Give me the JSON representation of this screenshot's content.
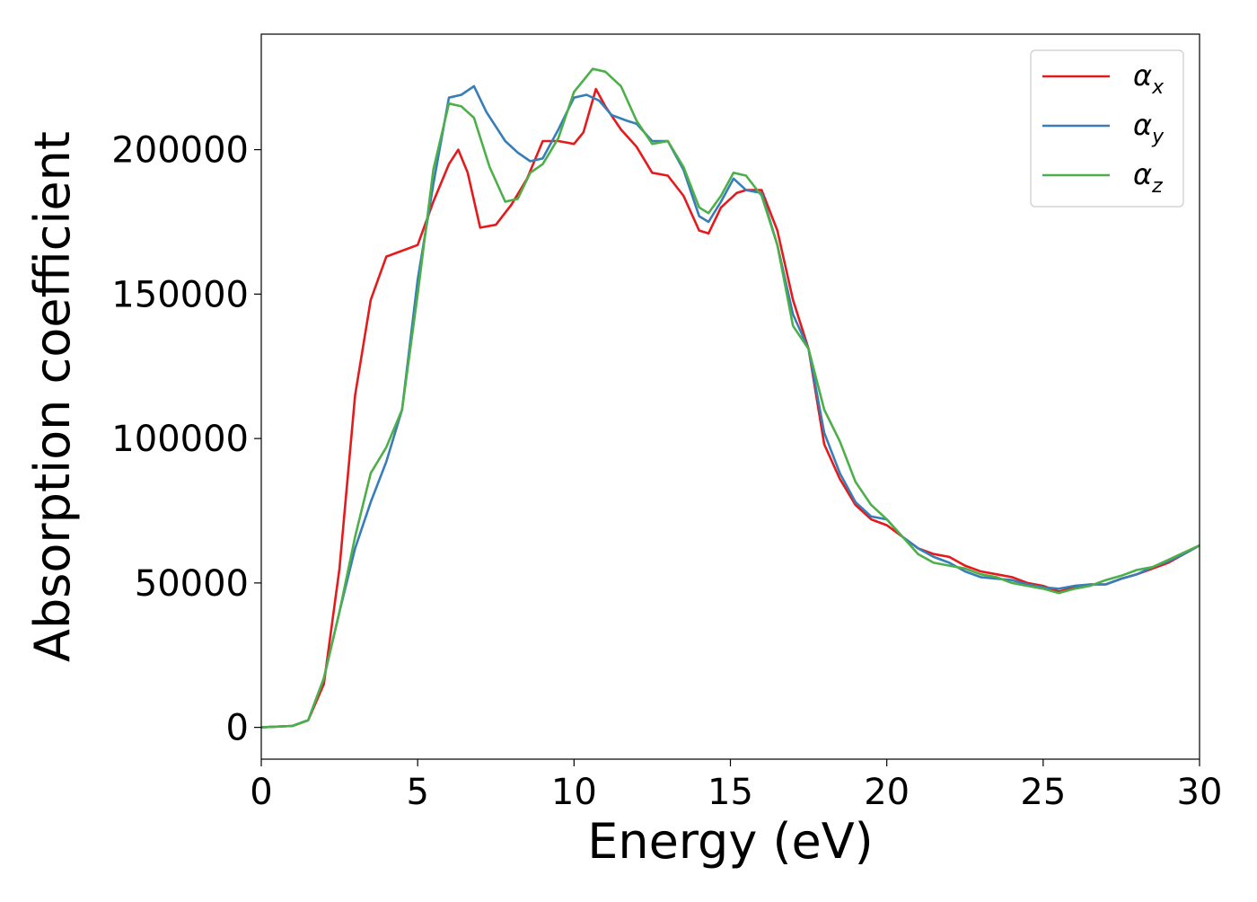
{
  "chart_data": {
    "type": "line",
    "title": "",
    "xlabel": "Energy (eV)",
    "ylabel": "Absorption coefficient",
    "xlim": [
      0,
      30
    ],
    "ylim": [
      -11000,
      240000
    ],
    "xticks": [
      0,
      5,
      10,
      15,
      20,
      25,
      30
    ],
    "xtick_labels": [
      "0",
      "5",
      "10",
      "15",
      "20",
      "25",
      "30"
    ],
    "yticks": [
      0,
      50000,
      100000,
      150000,
      200000
    ],
    "ytick_labels": [
      "0",
      "50000",
      "100000",
      "150000",
      "200000"
    ],
    "grid": false,
    "legend_position": "top-right",
    "series": [
      {
        "name": "αx",
        "legend_main": "α",
        "legend_sub": "x",
        "color": "#e41a1c",
        "points": [
          [
            0,
            0
          ],
          [
            1,
            500
          ],
          [
            1.5,
            2500
          ],
          [
            2,
            15000
          ],
          [
            2.5,
            55000
          ],
          [
            3,
            115000
          ],
          [
            3.5,
            148000
          ],
          [
            4,
            163000
          ],
          [
            4.5,
            165000
          ],
          [
            5,
            167000
          ],
          [
            5.5,
            182000
          ],
          [
            6,
            195000
          ],
          [
            6.3,
            200000
          ],
          [
            6.6,
            192000
          ],
          [
            7,
            173000
          ],
          [
            7.5,
            174000
          ],
          [
            8,
            181000
          ],
          [
            8.5,
            190000
          ],
          [
            9,
            203000
          ],
          [
            9.5,
            203000
          ],
          [
            10,
            202000
          ],
          [
            10.3,
            206000
          ],
          [
            10.7,
            221000
          ],
          [
            11,
            215000
          ],
          [
            11.5,
            207000
          ],
          [
            12,
            201000
          ],
          [
            12.5,
            192000
          ],
          [
            13,
            191000
          ],
          [
            13.5,
            184000
          ],
          [
            14,
            172000
          ],
          [
            14.3,
            171000
          ],
          [
            14.7,
            180000
          ],
          [
            15.2,
            185000
          ],
          [
            15.5,
            186000
          ],
          [
            16,
            186000
          ],
          [
            16.5,
            172000
          ],
          [
            17,
            148000
          ],
          [
            17.5,
            131000
          ],
          [
            18,
            98000
          ],
          [
            18.5,
            86000
          ],
          [
            19,
            77000
          ],
          [
            19.5,
            72000
          ],
          [
            20,
            70000
          ],
          [
            20.5,
            66000
          ],
          [
            21,
            62000
          ],
          [
            21.5,
            60000
          ],
          [
            22,
            59000
          ],
          [
            22.5,
            56000
          ],
          [
            23,
            54000
          ],
          [
            23.5,
            53000
          ],
          [
            24,
            52000
          ],
          [
            24.5,
            50000
          ],
          [
            25,
            49000
          ],
          [
            25.5,
            47000
          ],
          [
            26,
            48500
          ],
          [
            26.5,
            49500
          ],
          [
            27,
            49500
          ],
          [
            27.5,
            51500
          ],
          [
            28,
            53000
          ],
          [
            28.5,
            55000
          ],
          [
            29,
            57000
          ],
          [
            29.5,
            60000
          ],
          [
            30,
            63000
          ]
        ]
      },
      {
        "name": "αy",
        "legend_main": "α",
        "legend_sub": "y",
        "color": "#377eb8",
        "points": [
          [
            0,
            0
          ],
          [
            1,
            500
          ],
          [
            1.5,
            2500
          ],
          [
            2,
            17000
          ],
          [
            2.5,
            40000
          ],
          [
            3,
            62000
          ],
          [
            3.5,
            78000
          ],
          [
            4,
            92000
          ],
          [
            4.5,
            110000
          ],
          [
            5,
            155000
          ],
          [
            5.5,
            188000
          ],
          [
            6,
            218000
          ],
          [
            6.4,
            219000
          ],
          [
            6.8,
            222000
          ],
          [
            7.2,
            213000
          ],
          [
            7.8,
            203000
          ],
          [
            8.2,
            199000
          ],
          [
            8.6,
            196000
          ],
          [
            9,
            197000
          ],
          [
            9.5,
            207000
          ],
          [
            10,
            218000
          ],
          [
            10.4,
            219000
          ],
          [
            10.8,
            217000
          ],
          [
            11.2,
            212000
          ],
          [
            11.7,
            210000
          ],
          [
            12,
            209000
          ],
          [
            12.5,
            203000
          ],
          [
            13,
            203000
          ],
          [
            13.5,
            193000
          ],
          [
            14,
            177000
          ],
          [
            14.3,
            175000
          ],
          [
            14.7,
            182000
          ],
          [
            15.1,
            190000
          ],
          [
            15.5,
            186000
          ],
          [
            16,
            185000
          ],
          [
            16.5,
            167000
          ],
          [
            17,
            143000
          ],
          [
            17.5,
            131000
          ],
          [
            18,
            102000
          ],
          [
            18.5,
            88000
          ],
          [
            19,
            78000
          ],
          [
            19.5,
            73000
          ],
          [
            20,
            72000
          ],
          [
            20.5,
            66000
          ],
          [
            21,
            62000
          ],
          [
            21.5,
            59000
          ],
          [
            22,
            57000
          ],
          [
            22.5,
            54000
          ],
          [
            23,
            52000
          ],
          [
            23.5,
            51500
          ],
          [
            24,
            51000
          ],
          [
            24.5,
            49500
          ],
          [
            25,
            48500
          ],
          [
            25.5,
            48000
          ],
          [
            26,
            49000
          ],
          [
            26.5,
            49500
          ],
          [
            27,
            49500
          ],
          [
            27.5,
            51500
          ],
          [
            28,
            53000
          ],
          [
            28.5,
            55500
          ],
          [
            29,
            57500
          ],
          [
            29.5,
            60000
          ],
          [
            30,
            63000
          ]
        ]
      },
      {
        "name": "αz",
        "legend_main": "α",
        "legend_sub": "z",
        "color": "#4daf4a",
        "points": [
          [
            0,
            0
          ],
          [
            1,
            500
          ],
          [
            1.5,
            2500
          ],
          [
            2,
            17000
          ],
          [
            2.5,
            40000
          ],
          [
            3,
            66000
          ],
          [
            3.5,
            88000
          ],
          [
            4,
            97000
          ],
          [
            4.5,
            110000
          ],
          [
            5,
            150000
          ],
          [
            5.5,
            193000
          ],
          [
            6,
            216000
          ],
          [
            6.4,
            215000
          ],
          [
            6.8,
            211000
          ],
          [
            7.3,
            194000
          ],
          [
            7.8,
            182000
          ],
          [
            8.2,
            183000
          ],
          [
            8.6,
            192000
          ],
          [
            9,
            195000
          ],
          [
            9.5,
            204000
          ],
          [
            10,
            220000
          ],
          [
            10.3,
            224000
          ],
          [
            10.6,
            228000
          ],
          [
            11,
            227000
          ],
          [
            11.5,
            222000
          ],
          [
            12,
            210000
          ],
          [
            12.5,
            202000
          ],
          [
            13,
            203000
          ],
          [
            13.5,
            194000
          ],
          [
            14,
            180000
          ],
          [
            14.3,
            178000
          ],
          [
            14.7,
            184000
          ],
          [
            15.1,
            192000
          ],
          [
            15.5,
            191000
          ],
          [
            16,
            184000
          ],
          [
            16.5,
            167000
          ],
          [
            17,
            139000
          ],
          [
            17.5,
            131000
          ],
          [
            18,
            110000
          ],
          [
            18.5,
            99000
          ],
          [
            19,
            85000
          ],
          [
            19.5,
            77000
          ],
          [
            20,
            72000
          ],
          [
            20.5,
            66000
          ],
          [
            21,
            60000
          ],
          [
            21.5,
            57000
          ],
          [
            22,
            56000
          ],
          [
            22.5,
            55000
          ],
          [
            23,
            53000
          ],
          [
            23.5,
            52000
          ],
          [
            24,
            50000
          ],
          [
            24.5,
            49000
          ],
          [
            25,
            48000
          ],
          [
            25.5,
            46500
          ],
          [
            26,
            48000
          ],
          [
            26.5,
            49000
          ],
          [
            27,
            51000
          ],
          [
            27.5,
            52500
          ],
          [
            28,
            54500
          ],
          [
            28.5,
            55500
          ],
          [
            29,
            58000
          ],
          [
            29.5,
            60500
          ],
          [
            30,
            63000
          ]
        ]
      }
    ]
  }
}
